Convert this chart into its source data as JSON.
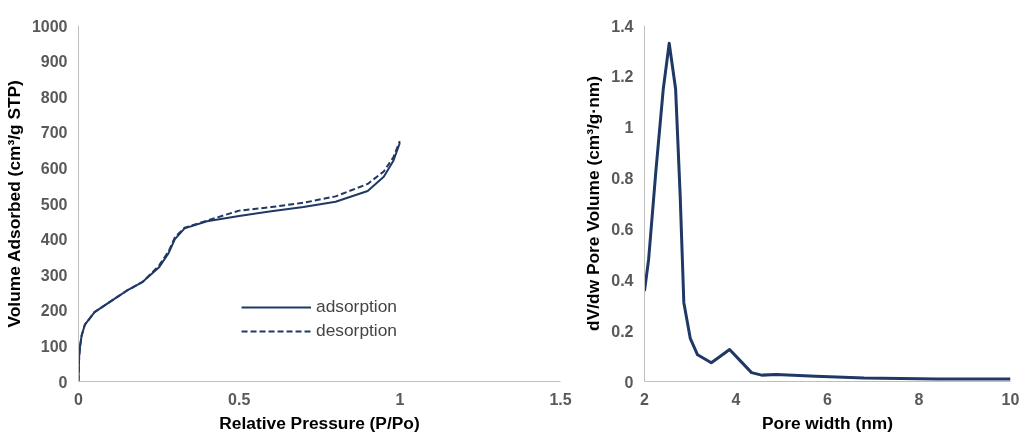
{
  "chart_data": [
    {
      "type": "line",
      "xlabel": "Relative Pressure (P/Po)",
      "ylabel": "Volume Adsorbed (cm³/g STP)",
      "xlim": [
        0,
        1.5
      ],
      "xticks": [
        0,
        0.5,
        1,
        1.5
      ],
      "ylim": [
        0,
        1000
      ],
      "yticks": [
        0,
        100,
        200,
        300,
        400,
        500,
        600,
        700,
        800,
        900,
        1000
      ],
      "grid": false,
      "legend": "bottom",
      "marker": "none",
      "series": [
        {
          "name": "adsorption",
          "color": "#203864",
          "line_style": "solid",
          "x": [
            0,
            0.002,
            0.005,
            0.01,
            0.02,
            0.05,
            0.1,
            0.15,
            0.2,
            0.25,
            0.28,
            0.3,
            0.33,
            0.4,
            0.5,
            0.6,
            0.7,
            0.8,
            0.9,
            0.95,
            0.98,
            1.0
          ],
          "values": [
            0,
            70,
            100,
            130,
            160,
            195,
            225,
            255,
            280,
            320,
            360,
            400,
            430,
            450,
            465,
            478,
            490,
            505,
            535,
            575,
            620,
            670
          ]
        },
        {
          "name": "desorption",
          "color": "#203864",
          "line_style": "dashed",
          "x": [
            0,
            0.002,
            0.005,
            0.01,
            0.02,
            0.05,
            0.1,
            0.15,
            0.2,
            0.25,
            0.28,
            0.3,
            0.33,
            0.4,
            0.5,
            0.6,
            0.7,
            0.8,
            0.9,
            0.95,
            0.98,
            1.0
          ],
          "values": [
            0,
            70,
            100,
            130,
            160,
            195,
            225,
            255,
            280,
            325,
            365,
            405,
            432,
            452,
            480,
            490,
            502,
            520,
            555,
            590,
            630,
            675
          ]
        }
      ]
    },
    {
      "type": "line",
      "xlabel": "Pore width (nm)",
      "ylabel": "dV/dw Pore Volume (cm³/g·nm)",
      "xlim": [
        2,
        10
      ],
      "xticks": [
        2,
        4,
        6,
        8,
        10
      ],
      "ylim": [
        0,
        1.4
      ],
      "yticks": [
        0,
        0.2,
        0.4,
        0.6,
        0.8,
        1,
        1.2,
        1.4
      ],
      "grid": false,
      "legend": false,
      "marker": "none",
      "series": [
        {
          "color": "#203864",
          "line_style": "solid",
          "x": [
            2,
            2.09,
            2.25,
            2.41,
            2.54,
            2.68,
            2.78,
            2.86,
            3.0,
            3.16,
            3.46,
            3.65,
            3.86,
            4.08,
            4.34,
            4.56,
            4.88,
            5.74,
            6.8,
            8.4,
            10
          ],
          "values": [
            0.356,
            0.48,
            0.83,
            1.15,
            1.33,
            1.15,
            0.73,
            0.31,
            0.17,
            0.105,
            0.074,
            0.098,
            0.126,
            0.084,
            0.035,
            0.025,
            0.028,
            0.021,
            0.014,
            0.01,
            0.01
          ]
        }
      ]
    }
  ]
}
